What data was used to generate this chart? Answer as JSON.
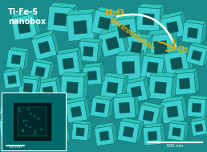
{
  "figsize": [
    2.58,
    1.89
  ],
  "dpi": 100,
  "bg_color": "#1a9090",
  "main_bg": "#1a8c8c",
  "title_text": "Ti-Fe-S\nnanobox",
  "title_color": "#ffffff",
  "h2o_text": "H₂O",
  "h2o_color": "#e8a800",
  "o2_text": "O₂",
  "o2_color": "#e8a800",
  "electro_text": "electrocatalytic",
  "electro_color": "#e8a800",
  "arrow_color": "#e8a800",
  "arrow_white_color": "#ffffff",
  "scalebar_color": "#ffffff",
  "scalebar_text_main": "300 nm",
  "scalebar_text_inset": "50 nm",
  "inset_bg": "#006868",
  "box_color": "#1a9090",
  "nanobox_teal": "#3dcfcf",
  "nanobox_dark": "#2aafaf",
  "nanobox_shadow": "#0d6060"
}
